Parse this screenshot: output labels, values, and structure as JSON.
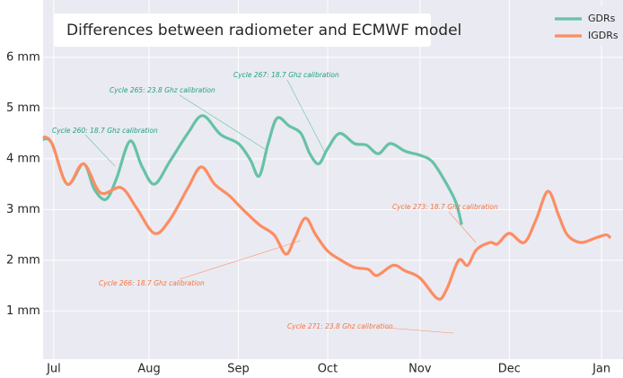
{
  "chart_data": {
    "type": "line",
    "title": "Differences between radiometer and ECMWF model",
    "xlim": [
      -3.6,
      191.2
    ],
    "ylim": [
      0.05,
      7.13
    ],
    "xticks": [
      {
        "value": 0,
        "label": "Jul"
      },
      {
        "value": 32,
        "label": "Aug"
      },
      {
        "value": 62,
        "label": "Sep"
      },
      {
        "value": 92,
        "label": "Oct"
      },
      {
        "value": 123,
        "label": "Nov"
      },
      {
        "value": 153,
        "label": "Dec"
      },
      {
        "value": 184,
        "label": "Jan"
      }
    ],
    "yticks": [
      {
        "value": 1,
        "label": "1 mm"
      },
      {
        "value": 2,
        "label": "2 mm"
      },
      {
        "value": 3,
        "label": "3 mm"
      },
      {
        "value": 4,
        "label": "4 mm"
      },
      {
        "value": 5,
        "label": "5 mm"
      },
      {
        "value": 6,
        "label": "6 mm"
      }
    ],
    "grid": true,
    "legend": "upper right",
    "series": [
      {
        "name": "GDRs",
        "color": "#66c2a5",
        "x": [
          -3.6,
          -0.6,
          4.5,
          10,
          13.6,
          17.5,
          21,
          25.6,
          29.6,
          33.8,
          39,
          45,
          50,
          56,
          62,
          66,
          69,
          72,
          75,
          79,
          83,
          86,
          89,
          92,
          96,
          101,
          105,
          109,
          113,
          118,
          123,
          127,
          131,
          135,
          137
        ],
        "values": [
          4.39,
          4.3,
          3.5,
          3.9,
          3.4,
          3.2,
          3.6,
          4.35,
          3.85,
          3.5,
          3.95,
          4.5,
          4.85,
          4.48,
          4.3,
          3.98,
          3.66,
          4.3,
          4.8,
          4.65,
          4.5,
          4.1,
          3.9,
          4.2,
          4.5,
          4.3,
          4.27,
          4.1,
          4.3,
          4.15,
          4.07,
          3.95,
          3.6,
          3.15,
          2.7
        ]
      },
      {
        "name": "IGDRs",
        "color": "#fc8d62",
        "x": [
          -3.6,
          -0.6,
          4.5,
          10,
          15.7,
          22.6,
          27.8,
          33.8,
          39,
          45,
          49.5,
          54,
          59,
          63,
          69,
          74,
          78,
          81,
          84.5,
          88,
          92,
          96.5,
          101,
          105.6,
          108.6,
          114,
          118,
          123,
          129,
          132,
          136,
          139,
          142,
          146.6,
          149,
          153,
          158,
          162,
          166,
          169.6,
          172.5,
          177,
          182,
          185.5,
          187
        ],
        "values": [
          4.44,
          4.3,
          3.5,
          3.9,
          3.33,
          3.43,
          3.03,
          2.53,
          2.8,
          3.42,
          3.84,
          3.5,
          3.27,
          3.03,
          2.7,
          2.5,
          2.12,
          2.44,
          2.83,
          2.5,
          2.18,
          2.0,
          1.86,
          1.82,
          1.7,
          1.9,
          1.79,
          1.65,
          1.24,
          1.43,
          2.0,
          1.9,
          2.21,
          2.35,
          2.32,
          2.53,
          2.35,
          2.8,
          3.36,
          2.88,
          2.5,
          2.35,
          2.44,
          2.5,
          2.44
        ]
      }
    ],
    "annotations": [
      "Cycle 260: 18.7 Ghz calibration",
      "Cycle 265: 23.8 Ghz calibration",
      "Cycle 267: 18.7 Ghz calibration",
      "Cycle 266: 18.7 Ghz calibration",
      "Cycle 271: 23.8 Ghz calibration",
      "Cycle 273: 18.7 Ghz calibration"
    ]
  }
}
